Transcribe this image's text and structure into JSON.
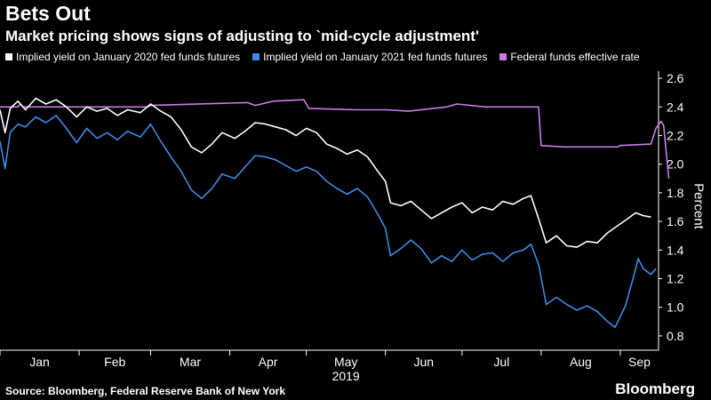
{
  "chart_data": {
    "type": "line",
    "title": "Bets Out",
    "subtitle": "Market pricing shows signs of adjusting to `mid-cycle adjustment'",
    "xlabel": "2019",
    "ylabel": "Percent",
    "x_start": "2019-01-01",
    "x_end": "2019-09-16",
    "ylim": [
      0.7,
      2.65
    ],
    "yticks": [
      0.8,
      1.0,
      1.2,
      1.4,
      1.6,
      1.8,
      2.0,
      2.2,
      2.4,
      2.6
    ],
    "ytick_labels": [
      "0.8",
      "1.0",
      "1.2",
      "1.4",
      "1.6",
      "1.8",
      "2.0",
      "2.2",
      "2.4",
      "2.6"
    ],
    "xtick_labels": [
      "Jan",
      "Feb",
      "Mar",
      "Apr",
      "May",
      "Jun",
      "Jul",
      "Aug",
      "Sep"
    ],
    "xtick_dates": [
      "2019-01-01",
      "2019-02-01",
      "2019-03-01",
      "2019-04-01",
      "2019-05-01",
      "2019-06-01",
      "2019-07-01",
      "2019-08-01",
      "2019-09-01"
    ],
    "legend_position": "top",
    "grid": false,
    "series": [
      {
        "name": "Implied yield on January 2020 fed funds futures",
        "color": "#ffffff",
        "points": [
          [
            "2019-01-01",
            2.38
          ],
          [
            "2019-01-03",
            2.22
          ],
          [
            "2019-01-05",
            2.39
          ],
          [
            "2019-01-08",
            2.44
          ],
          [
            "2019-01-11",
            2.38
          ],
          [
            "2019-01-15",
            2.46
          ],
          [
            "2019-01-19",
            2.42
          ],
          [
            "2019-01-23",
            2.45
          ],
          [
            "2019-01-27",
            2.4
          ],
          [
            "2019-01-31",
            2.33
          ],
          [
            "2019-02-04",
            2.4
          ],
          [
            "2019-02-08",
            2.37
          ],
          [
            "2019-02-12",
            2.39
          ],
          [
            "2019-02-16",
            2.34
          ],
          [
            "2019-02-20",
            2.38
          ],
          [
            "2019-02-25",
            2.36
          ],
          [
            "2019-03-01",
            2.42
          ],
          [
            "2019-03-05",
            2.37
          ],
          [
            "2019-03-09",
            2.33
          ],
          [
            "2019-03-13",
            2.24
          ],
          [
            "2019-03-17",
            2.12
          ],
          [
            "2019-03-21",
            2.08
          ],
          [
            "2019-03-25",
            2.14
          ],
          [
            "2019-03-29",
            2.22
          ],
          [
            "2019-04-03",
            2.18
          ],
          [
            "2019-04-07",
            2.23
          ],
          [
            "2019-04-11",
            2.29
          ],
          [
            "2019-04-15",
            2.28
          ],
          [
            "2019-04-19",
            2.26
          ],
          [
            "2019-04-23",
            2.24
          ],
          [
            "2019-04-27",
            2.2
          ],
          [
            "2019-05-01",
            2.25
          ],
          [
            "2019-05-05",
            2.22
          ],
          [
            "2019-05-09",
            2.14
          ],
          [
            "2019-05-13",
            2.11
          ],
          [
            "2019-05-17",
            2.07
          ],
          [
            "2019-05-21",
            2.1
          ],
          [
            "2019-05-25",
            2.05
          ],
          [
            "2019-05-29",
            1.95
          ],
          [
            "2019-06-01",
            1.88
          ],
          [
            "2019-06-03",
            1.73
          ],
          [
            "2019-06-07",
            1.71
          ],
          [
            "2019-06-11",
            1.74
          ],
          [
            "2019-06-15",
            1.68
          ],
          [
            "2019-06-19",
            1.62
          ],
          [
            "2019-06-23",
            1.66
          ],
          [
            "2019-06-27",
            1.7
          ],
          [
            "2019-07-01",
            1.73
          ],
          [
            "2019-07-05",
            1.66
          ],
          [
            "2019-07-09",
            1.7
          ],
          [
            "2019-07-13",
            1.68
          ],
          [
            "2019-07-17",
            1.74
          ],
          [
            "2019-07-21",
            1.72
          ],
          [
            "2019-07-25",
            1.76
          ],
          [
            "2019-07-28",
            1.78
          ],
          [
            "2019-07-31",
            1.62
          ],
          [
            "2019-08-03",
            1.45
          ],
          [
            "2019-08-07",
            1.5
          ],
          [
            "2019-08-11",
            1.43
          ],
          [
            "2019-08-15",
            1.42
          ],
          [
            "2019-08-19",
            1.46
          ],
          [
            "2019-08-23",
            1.45
          ],
          [
            "2019-08-27",
            1.52
          ],
          [
            "2019-08-31",
            1.57
          ],
          [
            "2019-09-04",
            1.62
          ],
          [
            "2019-09-07",
            1.66
          ],
          [
            "2019-09-10",
            1.64
          ],
          [
            "2019-09-13",
            1.63
          ]
        ]
      },
      {
        "name": "Implied yield on January 2021 fed funds futures",
        "color": "#3d8be8",
        "points": [
          [
            "2019-01-01",
            2.16
          ],
          [
            "2019-01-03",
            1.97
          ],
          [
            "2019-01-05",
            2.22
          ],
          [
            "2019-01-08",
            2.28
          ],
          [
            "2019-01-11",
            2.26
          ],
          [
            "2019-01-15",
            2.33
          ],
          [
            "2019-01-19",
            2.29
          ],
          [
            "2019-01-23",
            2.34
          ],
          [
            "2019-01-27",
            2.25
          ],
          [
            "2019-01-31",
            2.15
          ],
          [
            "2019-02-04",
            2.25
          ],
          [
            "2019-02-08",
            2.18
          ],
          [
            "2019-02-12",
            2.22
          ],
          [
            "2019-02-16",
            2.17
          ],
          [
            "2019-02-20",
            2.23
          ],
          [
            "2019-02-25",
            2.19
          ],
          [
            "2019-03-01",
            2.28
          ],
          [
            "2019-03-05",
            2.16
          ],
          [
            "2019-03-09",
            2.05
          ],
          [
            "2019-03-13",
            1.95
          ],
          [
            "2019-03-17",
            1.82
          ],
          [
            "2019-03-21",
            1.76
          ],
          [
            "2019-03-25",
            1.83
          ],
          [
            "2019-03-29",
            1.93
          ],
          [
            "2019-04-03",
            1.9
          ],
          [
            "2019-04-07",
            1.98
          ],
          [
            "2019-04-11",
            2.06
          ],
          [
            "2019-04-15",
            2.05
          ],
          [
            "2019-04-19",
            2.03
          ],
          [
            "2019-04-23",
            1.99
          ],
          [
            "2019-04-27",
            1.95
          ],
          [
            "2019-05-01",
            1.98
          ],
          [
            "2019-05-05",
            1.95
          ],
          [
            "2019-05-09",
            1.88
          ],
          [
            "2019-05-13",
            1.83
          ],
          [
            "2019-05-17",
            1.79
          ],
          [
            "2019-05-21",
            1.83
          ],
          [
            "2019-05-25",
            1.77
          ],
          [
            "2019-05-29",
            1.65
          ],
          [
            "2019-06-01",
            1.55
          ],
          [
            "2019-06-03",
            1.36
          ],
          [
            "2019-06-07",
            1.41
          ],
          [
            "2019-06-11",
            1.47
          ],
          [
            "2019-06-15",
            1.41
          ],
          [
            "2019-06-19",
            1.31
          ],
          [
            "2019-06-23",
            1.36
          ],
          [
            "2019-06-27",
            1.32
          ],
          [
            "2019-07-01",
            1.4
          ],
          [
            "2019-07-05",
            1.33
          ],
          [
            "2019-07-09",
            1.37
          ],
          [
            "2019-07-13",
            1.38
          ],
          [
            "2019-07-17",
            1.32
          ],
          [
            "2019-07-21",
            1.38
          ],
          [
            "2019-07-25",
            1.4
          ],
          [
            "2019-07-28",
            1.44
          ],
          [
            "2019-07-31",
            1.3
          ],
          [
            "2019-08-03",
            1.02
          ],
          [
            "2019-08-07",
            1.07
          ],
          [
            "2019-08-11",
            1.02
          ],
          [
            "2019-08-15",
            0.98
          ],
          [
            "2019-08-19",
            1.01
          ],
          [
            "2019-08-23",
            0.97
          ],
          [
            "2019-08-27",
            0.9
          ],
          [
            "2019-08-30",
            0.86
          ],
          [
            "2019-09-03",
            1.01
          ],
          [
            "2019-09-06",
            1.2
          ],
          [
            "2019-09-08",
            1.34
          ],
          [
            "2019-09-10",
            1.27
          ],
          [
            "2019-09-13",
            1.23
          ],
          [
            "2019-09-15",
            1.27
          ]
        ]
      },
      {
        "name": "Federal funds effective rate",
        "color": "#c77de6",
        "points": [
          [
            "2019-01-01",
            2.4
          ],
          [
            "2019-01-08",
            2.4
          ],
          [
            "2019-01-09",
            2.42
          ],
          [
            "2019-01-10",
            2.4
          ],
          [
            "2019-02-28",
            2.4
          ],
          [
            "2019-03-01",
            2.41
          ],
          [
            "2019-04-08",
            2.43
          ],
          [
            "2019-04-11",
            2.41
          ],
          [
            "2019-04-18",
            2.44
          ],
          [
            "2019-04-30",
            2.45
          ],
          [
            "2019-05-02",
            2.39
          ],
          [
            "2019-05-20",
            2.38
          ],
          [
            "2019-06-01",
            2.38
          ],
          [
            "2019-06-10",
            2.37
          ],
          [
            "2019-06-25",
            2.4
          ],
          [
            "2019-06-29",
            2.42
          ],
          [
            "2019-07-10",
            2.4
          ],
          [
            "2019-07-31",
            2.4
          ],
          [
            "2019-08-01",
            2.13
          ],
          [
            "2019-08-10",
            2.12
          ],
          [
            "2019-08-31",
            2.12
          ],
          [
            "2019-09-01",
            2.13
          ],
          [
            "2019-09-13",
            2.14
          ],
          [
            "2019-09-15",
            2.25
          ],
          [
            "2019-09-17",
            2.3
          ],
          [
            "2019-09-18",
            2.27
          ],
          [
            "2019-09-20",
            1.9
          ]
        ]
      }
    ],
    "source": "Source: Bloomberg, Federal Reserve Bank of New York",
    "brand": "Bloomberg"
  }
}
